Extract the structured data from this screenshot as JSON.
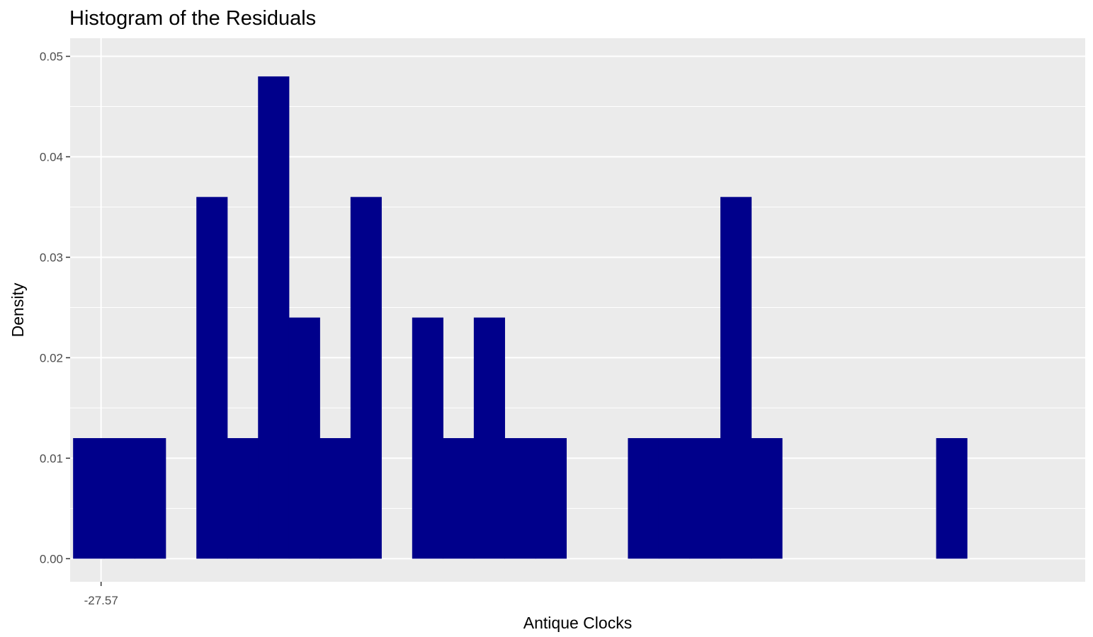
{
  "chart_data": {
    "type": "histogram",
    "title": "Histogram of the Residuals",
    "xlabel": "Antique Clocks",
    "ylabel": "Density",
    "bar_color": "#00008B",
    "panel_background": "#EBEBEB",
    "grid_color": "#FFFFFF",
    "grid": true,
    "legend": "none",
    "ylim": [
      -0.0023,
      0.0518
    ],
    "y_ticks": [
      0.0,
      0.01,
      0.02,
      0.03,
      0.04,
      0.05
    ],
    "y_tick_labels": [
      "0.00",
      "0.01",
      "0.02",
      "0.03",
      "0.04",
      "0.05"
    ],
    "xlim": [
      -30.08,
      52.25
    ],
    "x_ticks": [
      -27.57
    ],
    "x_tick_labels": [
      "-27.57"
    ],
    "bin_width": 2.5,
    "bins": [
      {
        "x0": -29.84,
        "x1": -27.34,
        "density": 0.012
      },
      {
        "x0": -27.34,
        "x1": -24.84,
        "density": 0.012
      },
      {
        "x0": -24.84,
        "x1": -22.34,
        "density": 0.012
      },
      {
        "x0": -22.34,
        "x1": -19.84,
        "density": 0.0
      },
      {
        "x0": -19.84,
        "x1": -17.34,
        "density": 0.036
      },
      {
        "x0": -17.34,
        "x1": -14.84,
        "density": 0.012
      },
      {
        "x0": -14.84,
        "x1": -12.34,
        "density": 0.048
      },
      {
        "x0": -12.34,
        "x1": -9.84,
        "density": 0.024
      },
      {
        "x0": -9.84,
        "x1": -7.34,
        "density": 0.012
      },
      {
        "x0": -7.34,
        "x1": -4.84,
        "density": 0.036
      },
      {
        "x0": -4.84,
        "x1": -2.34,
        "density": 0.0
      },
      {
        "x0": -2.34,
        "x1": 0.16,
        "density": 0.024
      },
      {
        "x0": 0.16,
        "x1": 2.66,
        "density": 0.012
      },
      {
        "x0": 2.66,
        "x1": 5.16,
        "density": 0.024
      },
      {
        "x0": 5.16,
        "x1": 7.66,
        "density": 0.012
      },
      {
        "x0": 7.66,
        "x1": 10.16,
        "density": 0.012
      },
      {
        "x0": 10.16,
        "x1": 12.66,
        "density": 0.0
      },
      {
        "x0": 12.66,
        "x1": 15.16,
        "density": 0.0
      },
      {
        "x0": 15.16,
        "x1": 17.66,
        "density": 0.012
      },
      {
        "x0": 17.66,
        "x1": 20.16,
        "density": 0.012
      },
      {
        "x0": 20.16,
        "x1": 22.66,
        "density": 0.012
      },
      {
        "x0": 22.66,
        "x1": 25.16,
        "density": 0.036
      },
      {
        "x0": 25.16,
        "x1": 27.66,
        "density": 0.012
      },
      {
        "x0": 27.66,
        "x1": 30.16,
        "density": 0.0
      },
      {
        "x0": 30.16,
        "x1": 32.66,
        "density": 0.0
      },
      {
        "x0": 32.66,
        "x1": 35.16,
        "density": 0.0
      },
      {
        "x0": 35.16,
        "x1": 37.66,
        "density": 0.0
      },
      {
        "x0": 37.66,
        "x1": 40.16,
        "density": 0.0
      },
      {
        "x0": 40.16,
        "x1": 42.66,
        "density": 0.012
      }
    ]
  }
}
